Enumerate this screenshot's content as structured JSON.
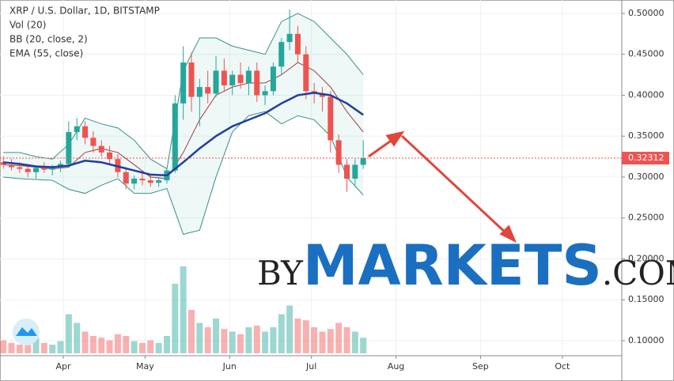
{
  "chart_data": {
    "type": "candlestick",
    "legend_lines": [
      "XRP / U.S. Dollar, 1D, BITSTAMP",
      "Vol (20)",
      "BB (20, close, 2)",
      "EMA (55, close)"
    ],
    "watermark": [
      "BY",
      "MARKETS",
      ".COM"
    ],
    "xlim": [
      67.8,
      295.8
    ],
    "xticks": [
      {
        "value": 91,
        "label": "Apr"
      },
      {
        "value": 121,
        "label": "May"
      },
      {
        "value": 152,
        "label": "Jun"
      },
      {
        "value": 182,
        "label": "Jul"
      },
      {
        "value": 213,
        "label": "Aug"
      },
      {
        "value": 244,
        "label": "Sep"
      },
      {
        "value": 274,
        "label": "Oct"
      }
    ],
    "ylim": [
      0.0816,
      0.5164
    ],
    "yticks": [
      {
        "value": 0.1,
        "label": "0.10000"
      },
      {
        "value": 0.15,
        "label": "0.15000"
      },
      {
        "value": 0.2,
        "label": "0.20000"
      },
      {
        "value": 0.25,
        "label": "0.25000"
      },
      {
        "value": 0.3,
        "label": "0.30000"
      },
      {
        "value": 0.35,
        "label": "0.35000"
      },
      {
        "value": 0.4,
        "label": "0.40000"
      },
      {
        "value": 0.45,
        "label": "0.45000"
      },
      {
        "value": 0.5,
        "label": "0.50000"
      }
    ],
    "grid": true,
    "up_color": "#26a69a",
    "down_color": "#ef5350",
    "last_price": 0.32312,
    "x": [
      69,
      72,
      75,
      78,
      81,
      84,
      87,
      90,
      93,
      96,
      99,
      102,
      105,
      108,
      111,
      114,
      117,
      120,
      123,
      126,
      129,
      132,
      135,
      138,
      141,
      144,
      147,
      150,
      153,
      156,
      159,
      162,
      165,
      168,
      171,
      174,
      177,
      180,
      183,
      186,
      189,
      192,
      195,
      198,
      201
    ],
    "open": [
      0.318,
      0.315,
      0.312,
      0.31,
      0.306,
      0.311,
      0.309,
      0.312,
      0.316,
      0.355,
      0.362,
      0.348,
      0.338,
      0.33,
      0.322,
      0.306,
      0.292,
      0.298,
      0.296,
      0.293,
      0.296,
      0.308,
      0.39,
      0.44,
      0.398,
      0.41,
      0.402,
      0.43,
      0.412,
      0.425,
      0.415,
      0.43,
      0.4,
      0.405,
      0.435,
      0.465,
      0.475,
      0.45,
      0.405,
      0.402,
      0.398,
      0.345,
      0.315,
      0.298,
      0.315
    ],
    "high": [
      0.325,
      0.322,
      0.318,
      0.316,
      0.314,
      0.318,
      0.315,
      0.32,
      0.368,
      0.372,
      0.368,
      0.356,
      0.345,
      0.338,
      0.328,
      0.312,
      0.302,
      0.305,
      0.302,
      0.3,
      0.312,
      0.4,
      0.46,
      0.452,
      0.42,
      0.43,
      0.448,
      0.445,
      0.43,
      0.44,
      0.435,
      0.44,
      0.412,
      0.44,
      0.47,
      0.505,
      0.485,
      0.46,
      0.415,
      0.41,
      0.405,
      0.352,
      0.322,
      0.322,
      0.345
    ],
    "low": [
      0.31,
      0.308,
      0.305,
      0.3,
      0.298,
      0.305,
      0.302,
      0.306,
      0.312,
      0.345,
      0.34,
      0.33,
      0.325,
      0.315,
      0.3,
      0.285,
      0.285,
      0.29,
      0.288,
      0.288,
      0.292,
      0.305,
      0.37,
      0.38,
      0.362,
      0.39,
      0.398,
      0.405,
      0.4,
      0.408,
      0.4,
      0.392,
      0.388,
      0.4,
      0.425,
      0.455,
      0.44,
      0.395,
      0.39,
      0.38,
      0.33,
      0.305,
      0.282,
      0.29,
      0.31
    ],
    "close": [
      0.315,
      0.312,
      0.31,
      0.306,
      0.311,
      0.309,
      0.312,
      0.316,
      0.355,
      0.362,
      0.348,
      0.338,
      0.33,
      0.322,
      0.306,
      0.292,
      0.298,
      0.296,
      0.293,
      0.296,
      0.308,
      0.39,
      0.44,
      0.398,
      0.41,
      0.402,
      0.43,
      0.412,
      0.425,
      0.415,
      0.43,
      0.4,
      0.405,
      0.435,
      0.465,
      0.475,
      0.45,
      0.405,
      0.402,
      0.398,
      0.345,
      0.315,
      0.298,
      0.315,
      0.323
    ],
    "volume": [
      15,
      12,
      10,
      14,
      18,
      12,
      10,
      14,
      45,
      35,
      25,
      20,
      18,
      15,
      22,
      20,
      14,
      12,
      15,
      12,
      20,
      80,
      100,
      50,
      35,
      30,
      40,
      28,
      25,
      22,
      30,
      32,
      25,
      30,
      45,
      55,
      40,
      38,
      30,
      25,
      28,
      35,
      30,
      25,
      18
    ],
    "line_x": [
      69,
      75,
      81,
      87,
      93,
      99,
      105,
      111,
      117,
      123,
      129,
      135,
      141,
      147,
      153,
      159,
      165,
      171,
      177,
      183,
      189,
      195,
      201
    ],
    "bb_upper": {
      "color": "#3a8f8a",
      "values": [
        0.33,
        0.33,
        0.325,
        0.322,
        0.34,
        0.372,
        0.365,
        0.36,
        0.345,
        0.322,
        0.31,
        0.43,
        0.47,
        0.47,
        0.46,
        0.455,
        0.45,
        0.49,
        0.5,
        0.49,
        0.47,
        0.45,
        0.425
      ]
    },
    "bb_lower": {
      "color": "#3a8f8a",
      "values": [
        0.3,
        0.298,
        0.297,
        0.296,
        0.285,
        0.28,
        0.29,
        0.298,
        0.28,
        0.28,
        0.286,
        0.23,
        0.235,
        0.3,
        0.355,
        0.375,
        0.38,
        0.365,
        0.375,
        0.37,
        0.35,
        0.3,
        0.278
      ]
    },
    "bb_mid": {
      "color": "#a83a3a",
      "values": [
        0.315,
        0.314,
        0.312,
        0.31,
        0.312,
        0.33,
        0.335,
        0.33,
        0.315,
        0.3,
        0.298,
        0.33,
        0.37,
        0.4,
        0.41,
        0.415,
        0.415,
        0.425,
        0.44,
        0.43,
        0.41,
        0.38,
        0.355
      ]
    },
    "ema": {
      "color": "#1f3f9f",
      "values": [
        0.318,
        0.316,
        0.313,
        0.312,
        0.314,
        0.32,
        0.318,
        0.313,
        0.308,
        0.303,
        0.302,
        0.318,
        0.335,
        0.35,
        0.362,
        0.37,
        0.378,
        0.39,
        0.4,
        0.403,
        0.4,
        0.39,
        0.376
      ]
    }
  }
}
